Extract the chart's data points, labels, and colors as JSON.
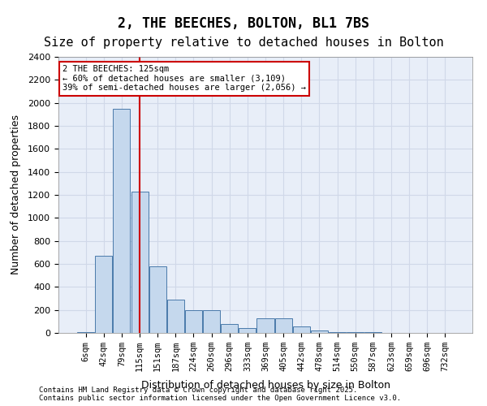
{
  "title_line1": "2, THE BEECHES, BOLTON, BL1 7BS",
  "title_line2": "Size of property relative to detached houses in Bolton",
  "xlabel": "Distribution of detached houses by size in Bolton",
  "ylabel": "Number of detached properties",
  "footer_line1": "Contains HM Land Registry data © Crown copyright and database right 2025.",
  "footer_line2": "Contains public sector information licensed under the Open Government Licence v3.0.",
  "annotation_line1": "2 THE BEECHES: 125sqm",
  "annotation_line2": "← 60% of detached houses are smaller (3,109)",
  "annotation_line3": "39% of semi-detached houses are larger (2,056) →",
  "bar_categories": [
    "6sqm",
    "42sqm",
    "79sqm",
    "115sqm",
    "151sqm",
    "187sqm",
    "224sqm",
    "260sqm",
    "296sqm",
    "333sqm",
    "369sqm",
    "405sqm",
    "442sqm",
    "478sqm",
    "514sqm",
    "550sqm",
    "587sqm",
    "623sqm",
    "659sqm",
    "696sqm",
    "732sqm"
  ],
  "bar_values": [
    5,
    670,
    1950,
    1230,
    580,
    290,
    195,
    195,
    75,
    40,
    130,
    130,
    55,
    20,
    5,
    5,
    5,
    0,
    0,
    0,
    0
  ],
  "bar_color": "#c5d8ed",
  "bar_edge_color": "#4a7aaa",
  "grid_color": "#d0d8e8",
  "bg_color": "#e8eef8",
  "redline_x": 3,
  "redline_color": "#cc0000",
  "ylim": [
    0,
    2400
  ],
  "yticks": [
    0,
    200,
    400,
    600,
    800,
    1000,
    1200,
    1400,
    1600,
    1800,
    2000,
    2200,
    2400
  ],
  "annotation_box_color": "#cc0000",
  "title_fontsize": 12,
  "subtitle_fontsize": 11
}
